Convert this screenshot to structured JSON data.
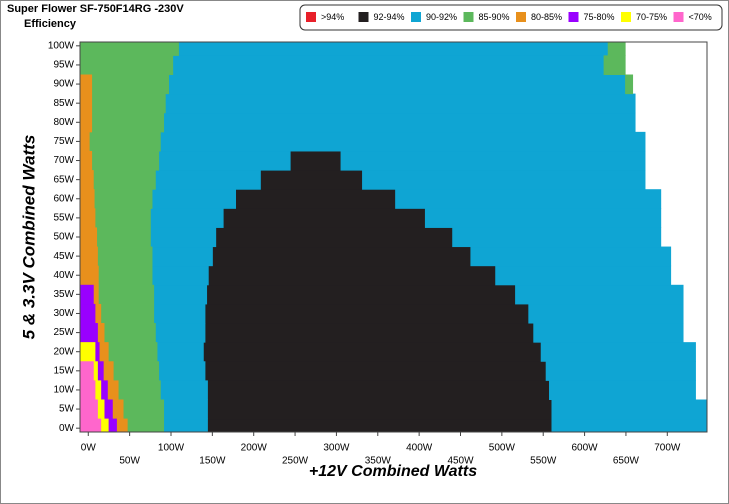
{
  "chart_data": {
    "type": "crossload",
    "title": "Super Flower SF-750F14RG -230V",
    "subtitle": "Efficiency",
    "x_label": "+12V Combined Watts",
    "y_label": "5 & 3.3V Combined Watts",
    "xlim": [
      -10,
      748
    ],
    "ylim": [
      -1,
      101
    ],
    "row_step": 5,
    "xticks": [
      {
        "value": 0,
        "label": "0W"
      },
      {
        "value": 50,
        "label": "50W"
      },
      {
        "value": 100,
        "label": "100W"
      },
      {
        "value": 150,
        "label": "150W"
      },
      {
        "value": 200,
        "label": "200W"
      },
      {
        "value": 250,
        "label": "250W"
      },
      {
        "value": 300,
        "label": "300W"
      },
      {
        "value": 350,
        "label": "350W"
      },
      {
        "value": 400,
        "label": "400W"
      },
      {
        "value": 450,
        "label": "450W"
      },
      {
        "value": 500,
        "label": "500W"
      },
      {
        "value": 550,
        "label": "550W"
      },
      {
        "value": 600,
        "label": "600W"
      },
      {
        "value": 650,
        "label": "650W"
      },
      {
        "value": 700,
        "label": "700W"
      }
    ],
    "yticks": [
      {
        "value": 0,
        "label": "0W"
      },
      {
        "value": 5,
        "label": "5W"
      },
      {
        "value": 10,
        "label": "10W"
      },
      {
        "value": 15,
        "label": "15W"
      },
      {
        "value": 20,
        "label": "20W"
      },
      {
        "value": 25,
        "label": "25W"
      },
      {
        "value": 30,
        "label": "30W"
      },
      {
        "value": 35,
        "label": "35W"
      },
      {
        "value": 40,
        "label": "40W"
      },
      {
        "value": 45,
        "label": "45W"
      },
      {
        "value": 50,
        "label": "50W"
      },
      {
        "value": 55,
        "label": "55W"
      },
      {
        "value": 60,
        "label": "60W"
      },
      {
        "value": 65,
        "label": "65W"
      },
      {
        "value": 70,
        "label": "70W"
      },
      {
        "value": 75,
        "label": "75W"
      },
      {
        "value": 80,
        "label": "80W"
      },
      {
        "value": 85,
        "label": "85W"
      },
      {
        "value": 90,
        "label": "90W"
      },
      {
        "value": 95,
        "label": "95W"
      },
      {
        "value": 100,
        "label": "100W"
      }
    ],
    "series": [
      {
        "name": ">94%",
        "color": "#e8202a",
        "ranges": []
      },
      {
        "name": "92-94%",
        "color": "#231f20",
        "ranges": [
          [
            0,
            144,
            560
          ],
          [
            5,
            144,
            560
          ],
          [
            10,
            144,
            557
          ],
          [
            15,
            141,
            553
          ],
          [
            20,
            139,
            547
          ],
          [
            25,
            141,
            538
          ],
          [
            30,
            141,
            532
          ],
          [
            35,
            143,
            516
          ],
          [
            40,
            145,
            492
          ],
          [
            45,
            150,
            462
          ],
          [
            50,
            154,
            440
          ],
          [
            55,
            163,
            407
          ],
          [
            60,
            178,
            371
          ],
          [
            65,
            208,
            331
          ],
          [
            70,
            244,
            305
          ]
        ]
      },
      {
        "name": "90-92%",
        "color": "#0fa5d3",
        "ranges": [
          [
            0,
            91,
            144
          ],
          [
            0,
            560,
            748
          ],
          [
            5,
            91,
            144
          ],
          [
            5,
            560,
            748
          ],
          [
            10,
            87,
            144
          ],
          [
            10,
            557,
            734
          ],
          [
            15,
            85,
            141
          ],
          [
            15,
            553,
            734
          ],
          [
            20,
            83,
            139
          ],
          [
            20,
            547,
            734
          ],
          [
            25,
            81,
            141
          ],
          [
            25,
            538,
            719
          ],
          [
            30,
            79,
            141
          ],
          [
            30,
            532,
            719
          ],
          [
            35,
            79,
            143
          ],
          [
            35,
            516,
            719
          ],
          [
            40,
            77,
            145
          ],
          [
            40,
            492,
            704
          ],
          [
            45,
            77,
            150
          ],
          [
            45,
            462,
            704
          ],
          [
            50,
            75,
            154
          ],
          [
            50,
            440,
            692
          ],
          [
            55,
            75,
            163
          ],
          [
            55,
            407,
            692
          ],
          [
            60,
            77,
            178
          ],
          [
            60,
            371,
            692
          ],
          [
            65,
            81,
            208
          ],
          [
            65,
            331,
            673
          ],
          [
            70,
            85,
            244
          ],
          [
            70,
            305,
            673
          ],
          [
            75,
            87,
            673
          ],
          [
            80,
            91,
            661
          ],
          [
            85,
            93,
            661
          ],
          [
            90,
            97,
            649
          ],
          [
            95,
            102,
            623
          ],
          [
            100,
            109,
            628
          ]
        ]
      },
      {
        "name": "85-90%",
        "color": "#5cb85c",
        "ranges": [
          [
            0,
            47,
            91
          ],
          [
            5,
            42,
            91
          ],
          [
            10,
            36,
            87
          ],
          [
            15,
            30,
            85
          ],
          [
            20,
            24,
            83
          ],
          [
            25,
            19,
            81
          ],
          [
            30,
            15,
            79
          ],
          [
            35,
            12,
            79
          ],
          [
            40,
            12,
            77
          ],
          [
            45,
            11,
            77
          ],
          [
            50,
            10,
            75
          ],
          [
            55,
            8,
            75
          ],
          [
            60,
            7,
            77
          ],
          [
            65,
            6,
            81
          ],
          [
            70,
            4,
            85
          ],
          [
            75,
            1,
            87
          ],
          [
            80,
            4,
            91
          ],
          [
            85,
            4,
            93
          ],
          [
            90,
            4,
            97
          ],
          [
            95,
            -10,
            102
          ],
          [
            100,
            -10,
            109
          ],
          [
            90,
            649,
            658
          ],
          [
            95,
            623,
            649
          ],
          [
            100,
            628,
            649
          ]
        ]
      },
      {
        "name": "80-85%",
        "color": "#e8901c",
        "ranges": [
          [
            0,
            34,
            47
          ],
          [
            5,
            29,
            42
          ],
          [
            10,
            23,
            36
          ],
          [
            15,
            18,
            30
          ],
          [
            20,
            13,
            24
          ],
          [
            25,
            11,
            19
          ],
          [
            30,
            8,
            15
          ],
          [
            35,
            6,
            12
          ],
          [
            40,
            -10,
            12
          ],
          [
            45,
            -10,
            11
          ],
          [
            50,
            -10,
            10
          ],
          [
            55,
            -10,
            8
          ],
          [
            60,
            -10,
            7
          ],
          [
            65,
            -10,
            6
          ],
          [
            70,
            -10,
            4
          ],
          [
            75,
            -10,
            1
          ],
          [
            80,
            -10,
            4
          ],
          [
            85,
            -10,
            4
          ],
          [
            90,
            -10,
            4
          ]
        ]
      },
      {
        "name": "75-80%",
        "color": "#9900ff",
        "ranges": [
          [
            0,
            24,
            34
          ],
          [
            5,
            19,
            29
          ],
          [
            10,
            15,
            23
          ],
          [
            15,
            11,
            18
          ],
          [
            20,
            8,
            13
          ],
          [
            25,
            -10,
            11
          ],
          [
            30,
            -10,
            8
          ],
          [
            35,
            -10,
            6
          ]
        ]
      },
      {
        "name": "70-75%",
        "color": "#ffff00",
        "ranges": [
          [
            0,
            15,
            24
          ],
          [
            5,
            11,
            19
          ],
          [
            10,
            8,
            15
          ],
          [
            15,
            6,
            11
          ],
          [
            20,
            -10,
            8
          ]
        ]
      },
      {
        "name": "<70%",
        "color": "#ff66cc",
        "ranges": [
          [
            0,
            -10,
            15
          ],
          [
            5,
            -10,
            11
          ],
          [
            10,
            -10,
            8
          ],
          [
            15,
            -10,
            6
          ]
        ]
      }
    ]
  }
}
